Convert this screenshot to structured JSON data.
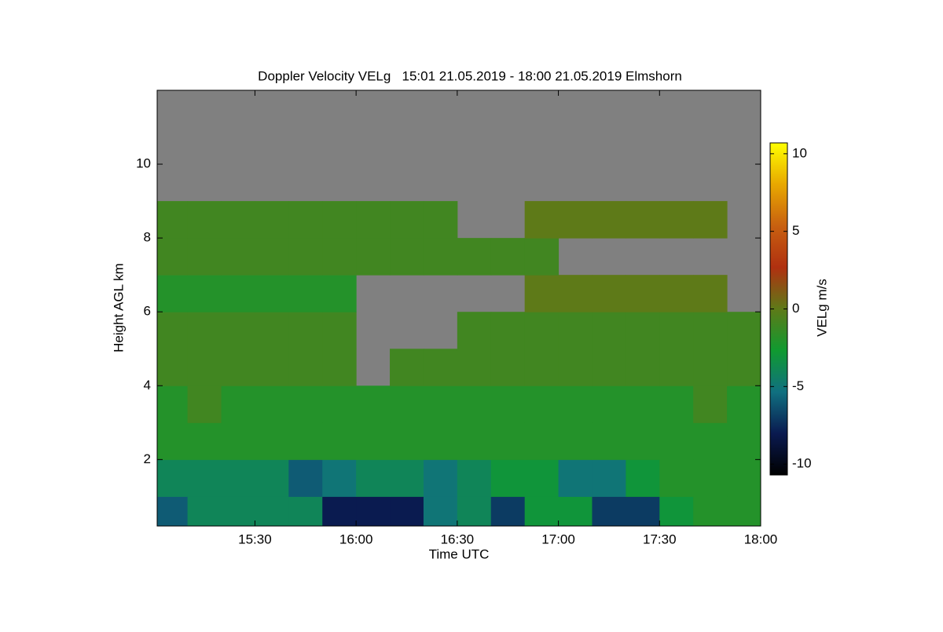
{
  "chart_data": {
    "type": "heatmap",
    "title": "Doppler Velocity VELg   15:01 21.05.2019 - 18:00 21.05.2019 Elmshorn",
    "x_label": "Time UTC",
    "y_label": "Height AGL km",
    "xlim": [
      15.0167,
      18.0
    ],
    "xticks": [
      {
        "value": 15.5,
        "label": "15:30"
      },
      {
        "value": 16.0,
        "label": "16:00"
      },
      {
        "value": 16.5,
        "label": "16:30"
      },
      {
        "value": 17.0,
        "label": "17:00"
      },
      {
        "value": 17.5,
        "label": "17:30"
      },
      {
        "value": 18.0,
        "label": "18:00"
      }
    ],
    "ylim": [
      0.2,
      12.0
    ],
    "yticks": [
      2,
      4,
      6,
      8,
      10
    ],
    "x": [
      15.0833,
      15.25,
      15.4167,
      15.5833,
      15.75,
      15.9167,
      16.0833,
      16.25,
      16.4167,
      16.5833,
      16.75,
      16.9167,
      17.0833,
      17.25,
      17.4167,
      17.5833,
      17.75,
      17.9167
    ],
    "y": [
      0.5,
      1.5,
      2.5,
      3.5,
      4.5,
      5.5,
      6.5,
      7.5,
      8.5,
      9.5,
      10.5,
      11.5
    ],
    "z": [
      [
        -6,
        -4,
        -4,
        -4,
        -4,
        -8,
        -8,
        -8,
        -5,
        -4,
        -7,
        -3,
        -3,
        -7,
        -7,
        -3,
        -2,
        -2
      ],
      [
        -4,
        -4,
        -4,
        -4,
        -6,
        -5,
        -4,
        -4,
        -5,
        -4,
        -3,
        -3,
        -5,
        -5,
        -3,
        -2,
        -2,
        -2
      ],
      [
        -2,
        -2,
        -2,
        -2,
        -2,
        -2,
        -2,
        -2,
        -2,
        -2,
        -2,
        -2,
        -2,
        -2,
        -2,
        -2,
        -2,
        -2
      ],
      [
        -2,
        -1,
        -2,
        -2,
        -2,
        -2,
        -2,
        -2,
        -2,
        -2,
        -2,
        -2,
        -2,
        -2,
        -2,
        -2,
        -1,
        -2
      ],
      [
        -1,
        -1,
        -1,
        -1,
        -1,
        -1,
        null,
        -1,
        -1,
        -1,
        -1,
        -1,
        -1,
        -1,
        -1,
        -1,
        -1,
        -1
      ],
      [
        -1,
        -1,
        -1,
        -1,
        -1,
        -1,
        null,
        null,
        null,
        -1,
        -1,
        -1,
        -1,
        -1,
        -1,
        -1,
        -1,
        -1
      ],
      [
        -2,
        -2,
        -2,
        -2,
        -2,
        -2,
        null,
        null,
        null,
        null,
        null,
        0,
        0,
        0,
        0,
        0,
        0,
        null
      ],
      [
        -1,
        -1,
        -1,
        -1,
        -1,
        -1,
        -1,
        -1,
        -1,
        -1,
        -1,
        -1,
        null,
        null,
        null,
        null,
        null,
        null
      ],
      [
        -1,
        -1,
        -1,
        -1,
        -1,
        -1,
        -1,
        -1,
        -1,
        null,
        null,
        0,
        0,
        0,
        0,
        0,
        0,
        null
      ],
      [
        null,
        null,
        null,
        null,
        null,
        null,
        null,
        null,
        null,
        null,
        null,
        null,
        null,
        null,
        null,
        null,
        null,
        null
      ],
      [
        null,
        null,
        null,
        null,
        null,
        null,
        null,
        null,
        null,
        null,
        null,
        null,
        null,
        null,
        null,
        null,
        null,
        null
      ],
      [
        null,
        null,
        null,
        null,
        null,
        null,
        null,
        null,
        null,
        null,
        null,
        null,
        null,
        null,
        null,
        null,
        null,
        null
      ]
    ],
    "nodata_color": "#808080",
    "colormap": [
      "#000000",
      "#0a1a50",
      "#107080",
      "#109a30",
      "#5e7a18",
      "#b03010",
      "#c86010",
      "#e8a800",
      "#ffff00"
    ],
    "colorbar": {
      "label": "VELg m/s",
      "lim": [
        -10.7,
        10.7
      ],
      "ticks": [
        -10,
        -5,
        0,
        5,
        10
      ]
    }
  }
}
